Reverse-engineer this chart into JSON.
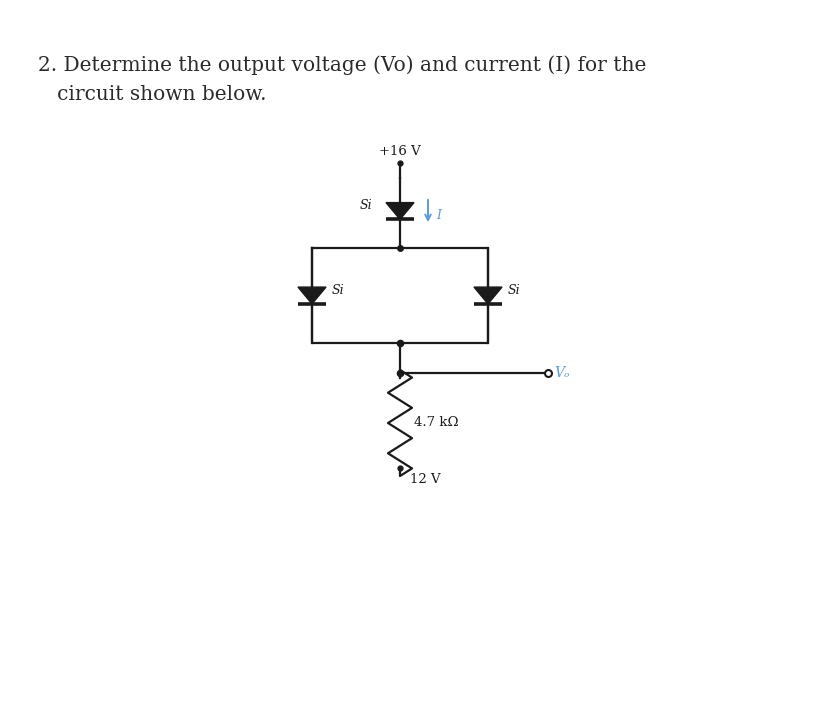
{
  "title_line1": "2. Determine the output voltage (Vo) and current (I) for the",
  "title_line2": "   circuit shown below.",
  "title_fontsize": 14.5,
  "bg_color": "#ffffff",
  "circuit_color": "#1a1a1a",
  "label_16V": "+16 V",
  "label_12V": "12 V",
  "label_resistor": "4.7 kΩ",
  "label_vo": "Vₒ",
  "label_si": "Si",
  "current_color": "#5b9bd5",
  "current_label": "I",
  "text_color": "#2a2a2a"
}
